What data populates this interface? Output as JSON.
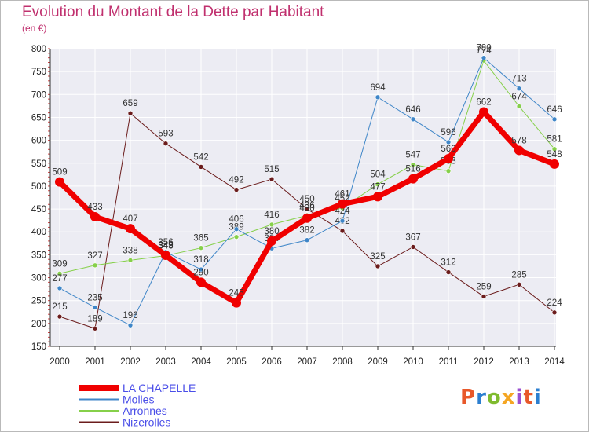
{
  "title": "Evolution du Montant de la Dette par Habitant",
  "subtitle": "(en €)",
  "logo": {
    "text": "Proxiti",
    "colors": [
      "#e8582a",
      "#2c7fd0",
      "#7fbb2e",
      "#f5a623",
      "#9b4fd0",
      "#e8582a",
      "#2c7fd0"
    ]
  },
  "chart_data": {
    "type": "line",
    "categories": [
      "2000",
      "2001",
      "2002",
      "2003",
      "2004",
      "2005",
      "2006",
      "2007",
      "2008",
      "2009",
      "2010",
      "2011",
      "2012",
      "2013",
      "2014"
    ],
    "ylim": [
      150,
      800
    ],
    "yticks": [
      150,
      200,
      250,
      300,
      350,
      400,
      450,
      500,
      550,
      600,
      650,
      700,
      750,
      800
    ],
    "grid": true,
    "legend_position": "bottom-left",
    "series": [
      {
        "name": "Nizerolles",
        "color": "#6b1c1c",
        "values": [
          215,
          189,
          659,
          593,
          542,
          492,
          515,
          450,
          402,
          325,
          367,
          312,
          259,
          285,
          224
        ]
      },
      {
        "name": "Arronnes",
        "color": "#86d04a",
        "values": [
          309,
          327,
          338,
          348,
          365,
          389,
          416,
          436,
          452,
          504,
          547,
          533,
          774,
          674,
          581
        ]
      },
      {
        "name": "Molles",
        "color": "#3f86c8",
        "values": [
          277,
          235,
          196,
          356,
          318,
          406,
          364,
          382,
          424,
          694,
          646,
          596,
          780,
          713,
          646
        ]
      },
      {
        "name": "LA CHAPELLE",
        "color": "#f00000",
        "values": [
          509,
          433,
          407,
          349,
          290,
          245,
          380,
          430,
          461,
          477,
          516,
          560,
          662,
          578,
          548
        ]
      }
    ],
    "legend_order": [
      "LA CHAPELLE",
      "Molles",
      "Arronnes",
      "Nizerolles"
    ]
  }
}
